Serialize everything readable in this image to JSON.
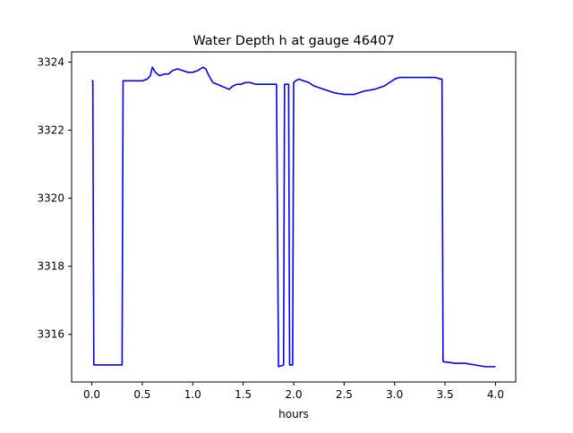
{
  "chart_data": {
    "type": "line",
    "title": "Water Depth h at gauge 46407",
    "xlabel": "hours",
    "ylabel": "",
    "xlim": [
      -0.2,
      4.2
    ],
    "ylim": [
      3314.6,
      3324.3
    ],
    "xticks": [
      0.0,
      0.5,
      1.0,
      1.5,
      2.0,
      2.5,
      3.0,
      3.5,
      4.0
    ],
    "xtick_labels": [
      "0.0",
      "0.5",
      "1.0",
      "1.5",
      "2.0",
      "2.5",
      "3.0",
      "3.5",
      "4.0"
    ],
    "yticks": [
      3316,
      3318,
      3320,
      3322,
      3324
    ],
    "ytick_labels": [
      "3316",
      "3318",
      "3320",
      "3322",
      "3324"
    ],
    "grid": false,
    "series": [
      {
        "color": "#0000ff",
        "x": [
          0.0,
          0.01,
          0.02,
          0.3,
          0.31,
          0.5,
          0.55,
          0.58,
          0.6,
          0.63,
          0.67,
          0.72,
          0.76,
          0.8,
          0.85,
          0.9,
          0.95,
          1.0,
          1.05,
          1.1,
          1.13,
          1.16,
          1.2,
          1.24,
          1.28,
          1.32,
          1.36,
          1.4,
          1.44,
          1.48,
          1.52,
          1.57,
          1.62,
          1.67,
          1.72,
          1.77,
          1.82,
          1.83,
          1.85,
          1.9,
          1.91,
          1.95,
          1.96,
          1.99,
          2.0,
          2.02,
          2.05,
          2.1,
          2.15,
          2.2,
          2.3,
          2.4,
          2.5,
          2.6,
          2.7,
          2.8,
          2.9,
          2.95,
          3.0,
          3.05,
          3.1,
          3.2,
          3.3,
          3.4,
          3.46,
          3.47,
          3.48,
          3.6,
          3.7,
          3.8,
          3.9,
          4.0
        ],
        "y": [
          3323.45,
          3323.45,
          3315.1,
          3315.1,
          3323.45,
          3323.45,
          3323.5,
          3323.6,
          3323.85,
          3323.7,
          3323.6,
          3323.65,
          3323.65,
          3323.75,
          3323.8,
          3323.75,
          3323.7,
          3323.7,
          3323.75,
          3323.85,
          3323.8,
          3323.6,
          3323.4,
          3323.35,
          3323.3,
          3323.25,
          3323.2,
          3323.3,
          3323.35,
          3323.35,
          3323.4,
          3323.4,
          3323.35,
          3323.35,
          3323.35,
          3323.35,
          3323.35,
          3323.35,
          3315.05,
          3315.1,
          3323.35,
          3323.35,
          3315.1,
          3315.1,
          3323.4,
          3323.45,
          3323.5,
          3323.45,
          3323.4,
          3323.3,
          3323.2,
          3323.1,
          3323.05,
          3323.05,
          3323.15,
          3323.2,
          3323.3,
          3323.4,
          3323.5,
          3323.55,
          3323.55,
          3323.55,
          3323.55,
          3323.55,
          3323.5,
          3323.5,
          3315.2,
          3315.15,
          3315.15,
          3315.1,
          3315.05,
          3315.05
        ]
      }
    ]
  }
}
